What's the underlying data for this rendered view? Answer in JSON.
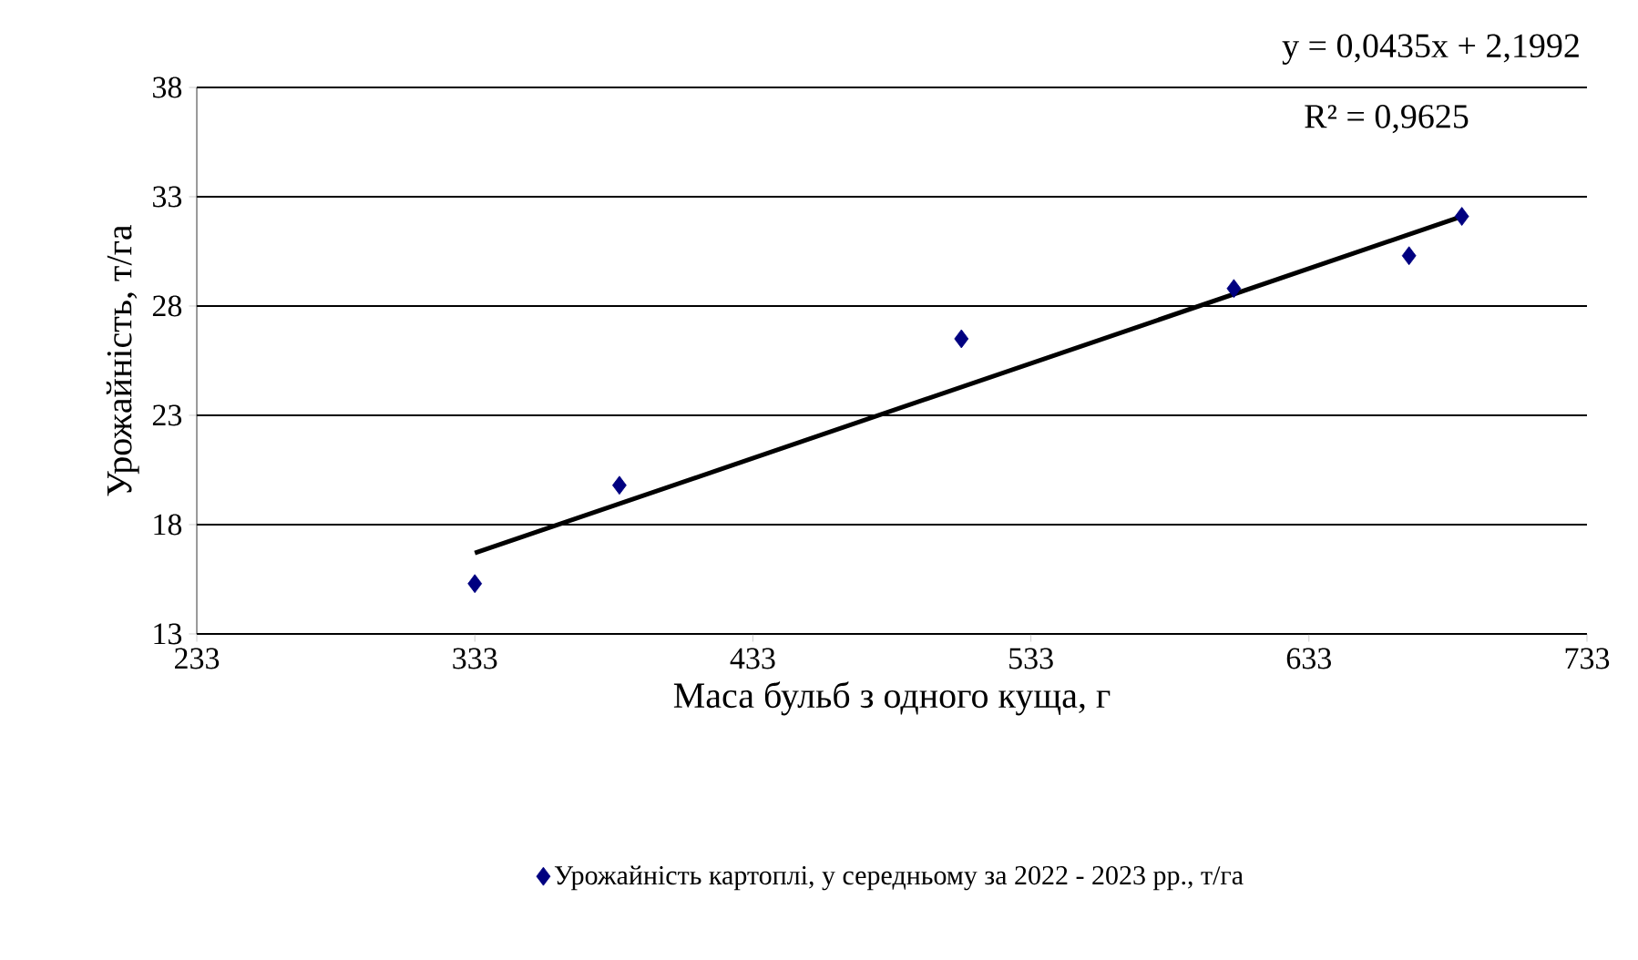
{
  "chart_data": {
    "type": "scatter",
    "xlabel": "Маса бульб з одного куща, г",
    "ylabel": "Урожайність, т/га",
    "xlim": [
      233,
      733
    ],
    "xticks": [
      233,
      333,
      433,
      533,
      633,
      733
    ],
    "ylim": [
      13,
      38
    ],
    "yticks": [
      13,
      18,
      23,
      28,
      33,
      38
    ],
    "grid": "y",
    "legend": "bottom",
    "annotations": [
      "y = 0,0435x + 2,1992",
      "R² = 0,9625"
    ],
    "series": [
      {
        "name": "Урожайність картоплі, у середньому за 2022 - 2023 рр., т/га",
        "color": "#000080",
        "marker": "diamond",
        "x": [
          333,
          385,
          508,
          606,
          669,
          688
        ],
        "values": [
          15.3,
          19.8,
          26.5,
          28.8,
          30.3,
          32.1
        ]
      },
      {
        "type": "line",
        "marker": "none",
        "color": "#000000",
        "x": [
          333,
          688
        ],
        "values": [
          16.7,
          32.1
        ]
      }
    ]
  }
}
